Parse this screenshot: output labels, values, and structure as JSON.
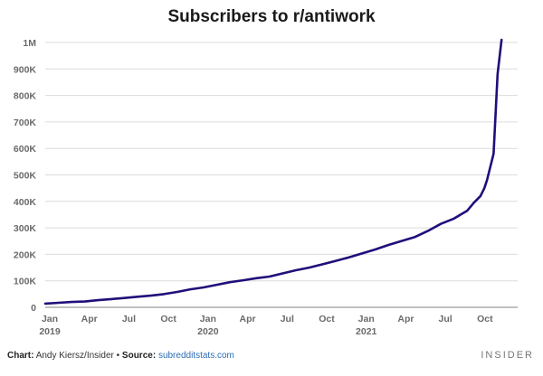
{
  "chart_data": {
    "type": "line",
    "title": "Subscribers to r/antiwork",
    "xlabel": "",
    "ylabel": "",
    "ylim": [
      0,
      1000000
    ],
    "xlim": [
      0,
      35
    ],
    "grid": "horizontal",
    "y_ticks": [
      {
        "value": 0,
        "label": "0"
      },
      {
        "value": 100000,
        "label": "100K"
      },
      {
        "value": 200000,
        "label": "200K"
      },
      {
        "value": 300000,
        "label": "300K"
      },
      {
        "value": 400000,
        "label": "400K"
      },
      {
        "value": 500000,
        "label": "500K"
      },
      {
        "value": 600000,
        "label": "600K"
      },
      {
        "value": 700000,
        "label": "700K"
      },
      {
        "value": 800000,
        "label": "800K"
      },
      {
        "value": 900000,
        "label": "900K"
      },
      {
        "value": 1000000,
        "label": "1M"
      }
    ],
    "x_ticks": [
      {
        "value": 0,
        "label": "Jan",
        "sub": "2019"
      },
      {
        "value": 3,
        "label": "Apr",
        "sub": ""
      },
      {
        "value": 6,
        "label": "Jul",
        "sub": ""
      },
      {
        "value": 9,
        "label": "Oct",
        "sub": ""
      },
      {
        "value": 12,
        "label": "Jan",
        "sub": "2020"
      },
      {
        "value": 15,
        "label": "Apr",
        "sub": ""
      },
      {
        "value": 18,
        "label": "Jul",
        "sub": ""
      },
      {
        "value": 21,
        "label": "Oct",
        "sub": ""
      },
      {
        "value": 24,
        "label": "Jan",
        "sub": "2021"
      },
      {
        "value": 27,
        "label": "Apr",
        "sub": ""
      },
      {
        "value": 30,
        "label": "Jul",
        "sub": ""
      },
      {
        "value": 33,
        "label": "Oct",
        "sub": ""
      }
    ],
    "series": [
      {
        "name": "Subscribers",
        "color": "#1f0f7a",
        "x": [
          0,
          1,
          2,
          3,
          4,
          5,
          6,
          7,
          8,
          9,
          10,
          11,
          12,
          13,
          14,
          15,
          16,
          17,
          18,
          19,
          20,
          21,
          22,
          23,
          24,
          25,
          26,
          27,
          28,
          29,
          30,
          31,
          32,
          32.5,
          33,
          33.3,
          33.5,
          33.65,
          33.8,
          34,
          34.3,
          34.6
        ],
        "values": [
          14000,
          17000,
          20000,
          22000,
          27000,
          31000,
          35000,
          40000,
          44000,
          50000,
          58000,
          68000,
          75000,
          85000,
          95000,
          102000,
          110000,
          116000,
          128000,
          140000,
          150000,
          162000,
          175000,
          188000,
          203000,
          218000,
          235000,
          250000,
          265000,
          288000,
          315000,
          335000,
          365000,
          395000,
          420000,
          450000,
          480000,
          510000,
          540000,
          580000,
          880000,
          1010000
        ]
      }
    ]
  },
  "footer": {
    "chart_label": "Chart:",
    "chart_credit": "Andy Kiersz/Insider",
    "bullet": "•",
    "source_label": "Source:",
    "source_value": "subredditstats.com",
    "brand": "INSIDER"
  }
}
